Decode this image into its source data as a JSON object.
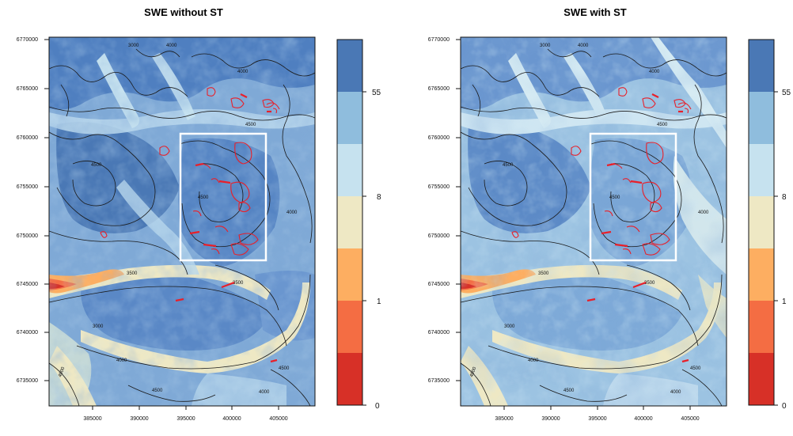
{
  "panels": [
    {
      "title": "SWE without ST",
      "contour_labels": [
        "3000",
        "4000",
        "4000",
        "4500",
        "4500",
        "4500",
        "3500",
        "4000",
        "3500",
        "3000",
        "4000",
        "4500",
        "4000",
        "4500",
        "4000"
      ]
    },
    {
      "title": "SWE with ST",
      "contour_labels": [
        "3000",
        "4000",
        "4000",
        "4500",
        "4500",
        "4500",
        "3500",
        "4000",
        "3500",
        "3000",
        "4000",
        "4500",
        "4000",
        "4500",
        "4000"
      ]
    }
  ],
  "axes": {
    "x_ticks": [
      "385000",
      "390000",
      "395000",
      "400000",
      "405000"
    ],
    "y_ticks": [
      "6770000",
      "6765000",
      "6760000",
      "6755000",
      "6750000",
      "6745000",
      "6740000",
      "6735000"
    ]
  },
  "legend": {
    "labels": [
      "55",
      "8",
      "1",
      "0"
    ],
    "colors": [
      "#d73027",
      "#f46d43",
      "#fdae61",
      "#eee8c4",
      "#c6e2ef",
      "#8fbddd",
      "#4a78b5"
    ]
  },
  "map_colors": {
    "valley_dark": "#d73027",
    "valley": "#f46d43",
    "valley_light": "#fdae61",
    "low": "#eee8c4",
    "mid": "#c6e2ef",
    "high": "#8fbddd",
    "peak": "#4a78b5",
    "glacier_outline": "#e8202a",
    "focus_box": "#ffffff",
    "contour": "#1a1a1a"
  }
}
